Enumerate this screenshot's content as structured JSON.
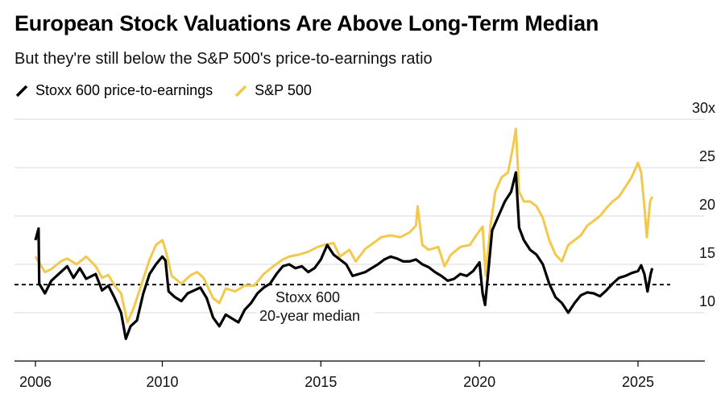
{
  "header": {
    "title": "European Stock Valuations Are Above Long-Term Median",
    "subtitle": "But they're still below the S&P 500's price-to-earnings ratio"
  },
  "colors": {
    "stoxx": "#000000",
    "sp500": "#f2c94c",
    "grid": "#d9d9d9",
    "axis": "#000000"
  },
  "chart_data": {
    "type": "line",
    "title": "European Stock Valuations Are Above Long-Term Median",
    "subtitle": "But they're still below the S&P 500's price-to-earnings ratio",
    "xlabel": "",
    "ylabel": "",
    "xlim": [
      2006,
      2026.2
    ],
    "ylim": [
      5,
      30
    ],
    "x_ticks": [
      2006,
      2010,
      2015,
      2020,
      2025
    ],
    "y_ticks": [
      10,
      15,
      20,
      25,
      30
    ],
    "y_tick_labels": [
      "10",
      "15",
      "20",
      "25",
      "30x"
    ],
    "grid": true,
    "legend": "top-left",
    "median_line": {
      "value": 12.9,
      "label_line1": "Stoxx 600",
      "label_line2": "20-year median"
    },
    "series": [
      {
        "name": "Stoxx 600 price-to-earnings",
        "color": "#000000",
        "points": [
          [
            2006.0,
            17.5
          ],
          [
            2006.1,
            18.7
          ],
          [
            2006.12,
            13.0
          ],
          [
            2006.3,
            12.0
          ],
          [
            2006.5,
            13.3
          ],
          [
            2006.8,
            14.2
          ],
          [
            2007.0,
            14.8
          ],
          [
            2007.2,
            13.6
          ],
          [
            2007.4,
            14.6
          ],
          [
            2007.6,
            13.5
          ],
          [
            2007.9,
            14.0
          ],
          [
            2008.1,
            12.3
          ],
          [
            2008.3,
            12.8
          ],
          [
            2008.5,
            11.5
          ],
          [
            2008.7,
            10.0
          ],
          [
            2008.85,
            7.3
          ],
          [
            2009.0,
            8.6
          ],
          [
            2009.2,
            9.2
          ],
          [
            2009.4,
            12.0
          ],
          [
            2009.6,
            14.0
          ],
          [
            2009.8,
            15.0
          ],
          [
            2010.0,
            15.8
          ],
          [
            2010.1,
            15.4
          ],
          [
            2010.2,
            12.2
          ],
          [
            2010.4,
            11.6
          ],
          [
            2010.6,
            11.2
          ],
          [
            2010.8,
            12.0
          ],
          [
            2011.0,
            12.3
          ],
          [
            2011.2,
            12.6
          ],
          [
            2011.4,
            11.5
          ],
          [
            2011.6,
            9.5
          ],
          [
            2011.8,
            8.6
          ],
          [
            2012.0,
            9.8
          ],
          [
            2012.2,
            9.4
          ],
          [
            2012.4,
            9.0
          ],
          [
            2012.6,
            10.3
          ],
          [
            2012.8,
            11.0
          ],
          [
            2013.0,
            12.0
          ],
          [
            2013.2,
            12.6
          ],
          [
            2013.4,
            13.0
          ],
          [
            2013.6,
            14.0
          ],
          [
            2013.8,
            14.8
          ],
          [
            2014.0,
            15.0
          ],
          [
            2014.2,
            14.6
          ],
          [
            2014.4,
            14.8
          ],
          [
            2014.6,
            14.2
          ],
          [
            2014.8,
            14.6
          ],
          [
            2015.0,
            15.5
          ],
          [
            2015.2,
            17.0
          ],
          [
            2015.4,
            16.0
          ],
          [
            2015.6,
            15.5
          ],
          [
            2015.8,
            15.0
          ],
          [
            2016.0,
            13.8
          ],
          [
            2016.2,
            14.0
          ],
          [
            2016.4,
            14.2
          ],
          [
            2016.6,
            14.6
          ],
          [
            2016.8,
            15.0
          ],
          [
            2017.0,
            15.5
          ],
          [
            2017.2,
            15.8
          ],
          [
            2017.4,
            15.6
          ],
          [
            2017.6,
            15.3
          ],
          [
            2017.8,
            15.3
          ],
          [
            2018.0,
            15.5
          ],
          [
            2018.2,
            15.0
          ],
          [
            2018.4,
            14.7
          ],
          [
            2018.6,
            14.2
          ],
          [
            2018.8,
            13.8
          ],
          [
            2019.0,
            13.3
          ],
          [
            2019.2,
            13.5
          ],
          [
            2019.4,
            14.0
          ],
          [
            2019.6,
            13.8
          ],
          [
            2019.8,
            14.3
          ],
          [
            2020.0,
            15.2
          ],
          [
            2020.1,
            12.0
          ],
          [
            2020.18,
            10.8
          ],
          [
            2020.3,
            15.0
          ],
          [
            2020.4,
            18.5
          ],
          [
            2020.6,
            20.0
          ],
          [
            2020.8,
            21.5
          ],
          [
            2021.0,
            22.5
          ],
          [
            2021.15,
            24.5
          ],
          [
            2021.25,
            18.8
          ],
          [
            2021.4,
            17.5
          ],
          [
            2021.6,
            16.5
          ],
          [
            2021.8,
            16.0
          ],
          [
            2022.0,
            15.0
          ],
          [
            2022.2,
            13.0
          ],
          [
            2022.4,
            11.6
          ],
          [
            2022.6,
            11.0
          ],
          [
            2022.8,
            10.0
          ],
          [
            2023.0,
            11.0
          ],
          [
            2023.2,
            11.8
          ],
          [
            2023.4,
            12.1
          ],
          [
            2023.6,
            12.0
          ],
          [
            2023.8,
            11.7
          ],
          [
            2024.0,
            12.3
          ],
          [
            2024.2,
            13.0
          ],
          [
            2024.4,
            13.6
          ],
          [
            2024.6,
            13.8
          ],
          [
            2024.8,
            14.1
          ],
          [
            2025.0,
            14.3
          ],
          [
            2025.1,
            14.9
          ],
          [
            2025.2,
            14.0
          ],
          [
            2025.3,
            12.2
          ],
          [
            2025.4,
            14.0
          ],
          [
            2025.45,
            14.6
          ]
        ]
      },
      {
        "name": "S&P 500",
        "color": "#f2c94c",
        "points": [
          [
            2006.0,
            15.8
          ],
          [
            2006.1,
            15.3
          ],
          [
            2006.3,
            14.2
          ],
          [
            2006.5,
            14.5
          ],
          [
            2006.8,
            15.3
          ],
          [
            2007.0,
            15.6
          ],
          [
            2007.3,
            15.0
          ],
          [
            2007.6,
            15.8
          ],
          [
            2007.9,
            14.8
          ],
          [
            2008.1,
            13.6
          ],
          [
            2008.3,
            13.9
          ],
          [
            2008.5,
            12.8
          ],
          [
            2008.7,
            12.0
          ],
          [
            2008.9,
            9.0
          ],
          [
            2009.1,
            10.5
          ],
          [
            2009.3,
            12.5
          ],
          [
            2009.6,
            15.5
          ],
          [
            2009.8,
            17.0
          ],
          [
            2010.0,
            17.5
          ],
          [
            2010.1,
            16.5
          ],
          [
            2010.3,
            13.8
          ],
          [
            2010.6,
            13.0
          ],
          [
            2010.9,
            13.9
          ],
          [
            2011.1,
            14.2
          ],
          [
            2011.3,
            13.6
          ],
          [
            2011.6,
            11.5
          ],
          [
            2011.8,
            11.0
          ],
          [
            2012.0,
            12.5
          ],
          [
            2012.3,
            12.2
          ],
          [
            2012.6,
            12.8
          ],
          [
            2012.9,
            12.8
          ],
          [
            2013.2,
            14.0
          ],
          [
            2013.5,
            14.8
          ],
          [
            2013.8,
            15.5
          ],
          [
            2014.0,
            15.8
          ],
          [
            2014.3,
            16.0
          ],
          [
            2014.6,
            16.3
          ],
          [
            2014.9,
            16.8
          ],
          [
            2015.1,
            17.0
          ],
          [
            2015.4,
            17.2
          ],
          [
            2015.6,
            15.8
          ],
          [
            2015.9,
            16.5
          ],
          [
            2016.1,
            15.3
          ],
          [
            2016.4,
            16.6
          ],
          [
            2016.7,
            17.3
          ],
          [
            2016.9,
            17.8
          ],
          [
            2017.2,
            18.0
          ],
          [
            2017.5,
            17.8
          ],
          [
            2017.8,
            18.3
          ],
          [
            2018.0,
            19.0
          ],
          [
            2018.05,
            21.0
          ],
          [
            2018.2,
            17.0
          ],
          [
            2018.4,
            16.5
          ],
          [
            2018.7,
            16.8
          ],
          [
            2018.9,
            14.8
          ],
          [
            2019.1,
            16.0
          ],
          [
            2019.4,
            16.8
          ],
          [
            2019.7,
            17.0
          ],
          [
            2019.9,
            18.0
          ],
          [
            2020.1,
            18.9
          ],
          [
            2020.2,
            13.8
          ],
          [
            2020.35,
            19.0
          ],
          [
            2020.5,
            22.5
          ],
          [
            2020.7,
            24.0
          ],
          [
            2020.9,
            24.5
          ],
          [
            2021.05,
            27.0
          ],
          [
            2021.15,
            29.0
          ],
          [
            2021.25,
            22.5
          ],
          [
            2021.4,
            21.5
          ],
          [
            2021.6,
            21.5
          ],
          [
            2021.8,
            21.0
          ],
          [
            2022.0,
            19.8
          ],
          [
            2022.2,
            17.5
          ],
          [
            2022.4,
            16.0
          ],
          [
            2022.6,
            15.3
          ],
          [
            2022.8,
            17.0
          ],
          [
            2023.0,
            17.5
          ],
          [
            2023.2,
            18.0
          ],
          [
            2023.4,
            19.0
          ],
          [
            2023.6,
            19.5
          ],
          [
            2023.8,
            20.0
          ],
          [
            2024.0,
            20.8
          ],
          [
            2024.2,
            21.5
          ],
          [
            2024.4,
            22.0
          ],
          [
            2024.6,
            23.0
          ],
          [
            2024.8,
            24.0
          ],
          [
            2025.0,
            25.5
          ],
          [
            2025.1,
            24.5
          ],
          [
            2025.2,
            21.0
          ],
          [
            2025.28,
            17.8
          ],
          [
            2025.38,
            21.5
          ],
          [
            2025.45,
            22.0
          ]
        ]
      }
    ]
  }
}
